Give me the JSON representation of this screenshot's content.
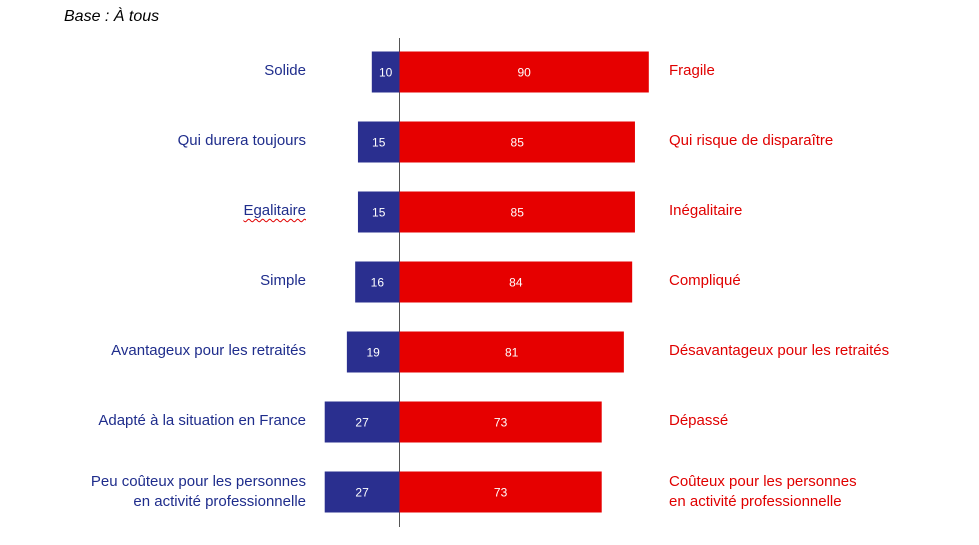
{
  "base_label": "Base : À tous",
  "colors": {
    "left": "#2a2f8f",
    "right": "#e60000",
    "left_text": "#1f2d8c",
    "right_text": "#e00000"
  },
  "chart_data": {
    "type": "bar",
    "orientation": "horizontal-diverging",
    "title": "",
    "categories": [
      [
        "Solide"
      ],
      [
        "Qui durera toujours"
      ],
      [
        "Egalitaire"
      ],
      [
        "Simple"
      ],
      [
        "Avantageux pour les retraités"
      ],
      [
        "Adapté à la situation en France"
      ],
      [
        "Peu coûteux pour les personnes",
        "en activité professionnelle"
      ]
    ],
    "opposites": [
      [
        "Fragile"
      ],
      [
        "Qui risque de disparaître"
      ],
      [
        "Inégalitaire"
      ],
      [
        "Compliqué"
      ],
      [
        "Désavantageux pour les retraités"
      ],
      [
        "Dépassé"
      ],
      [
        "Coûteux pour les personnes",
        "en activité professionnelle"
      ]
    ],
    "series": [
      {
        "values": [
          10,
          15,
          15,
          16,
          19,
          27,
          27
        ]
      },
      {
        "values": [
          90,
          85,
          85,
          84,
          81,
          73,
          73
        ]
      }
    ],
    "xlim": [
      0,
      100
    ],
    "grid": false,
    "legend": "none"
  }
}
